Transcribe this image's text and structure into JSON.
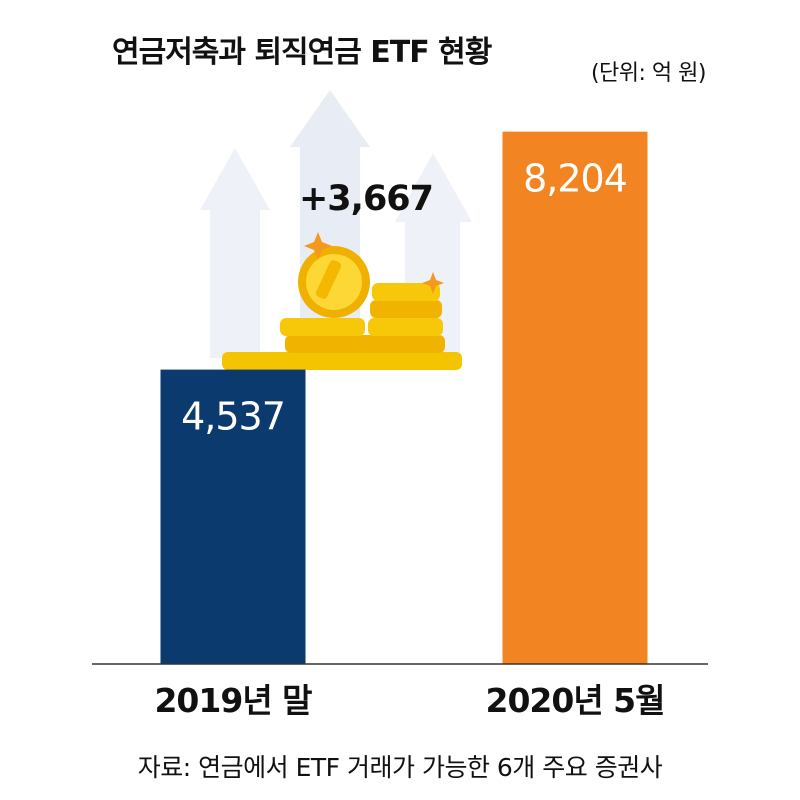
{
  "chart_data": {
    "type": "bar",
    "title": "연금저축과 퇴직연금 ETF 현황",
    "unit": "(단위: 억 원)",
    "categories": [
      "2019년 말",
      "2020년 5월"
    ],
    "values": [
      4537,
      8204
    ],
    "value_labels": [
      "4,537",
      "8,204"
    ],
    "colors": [
      "#0b3a6e",
      "#f28522"
    ],
    "difference_label": "+3,667",
    "source": "자료: 연금에서 ETF 거래가 가능한 6개 주요 증권사",
    "ylim": [
      0,
      9000
    ],
    "grid": false,
    "legend": "none"
  }
}
